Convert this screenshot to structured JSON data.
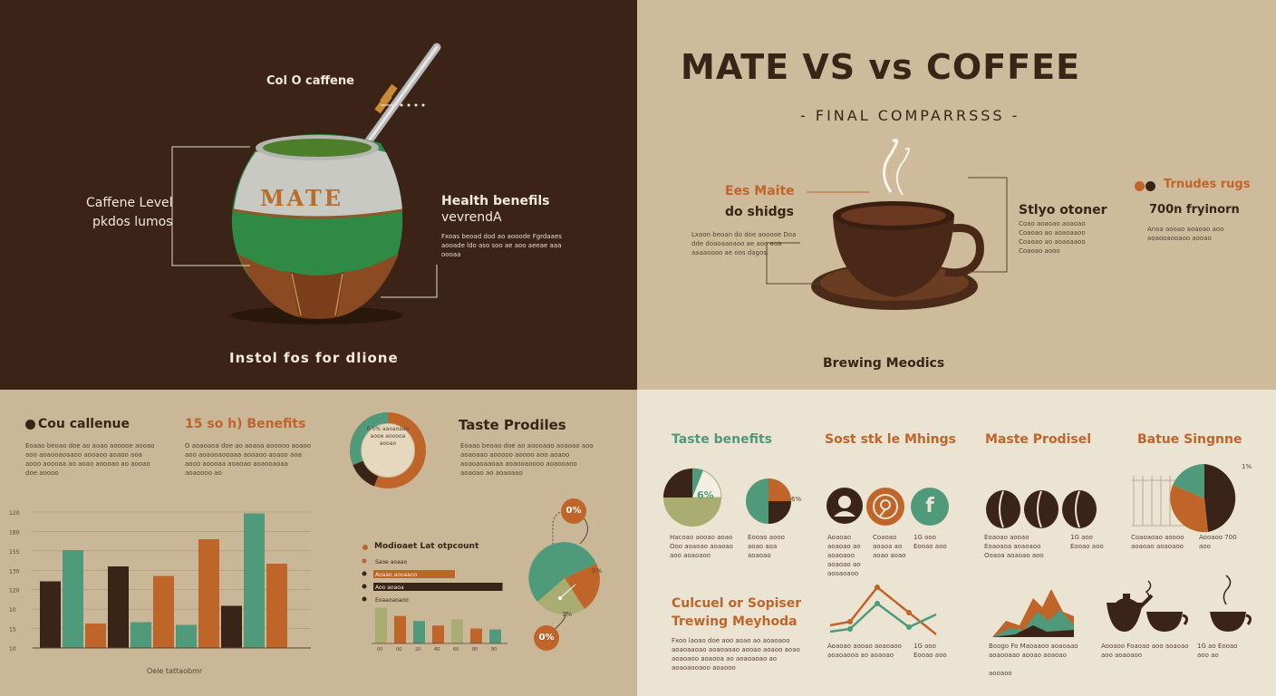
{
  "colors": {
    "dark_brown": "#3b2417",
    "tan": "#cdbb9b",
    "cream": "#ece4d3",
    "orange": "#c0652a",
    "green": "#4f9a7a",
    "olive": "#a9ad72"
  },
  "top_left": {
    "label_caffeine": "Col O caffene",
    "label_caffeine_level_1": "Caffene Level",
    "label_caffeine_level_2": "pkdos lumos",
    "gourd_text": "MATE",
    "health_title_1": "Health benefils",
    "health_title_2": "vevrendA",
    "health_body": "Fxoas beoad dod ao aooode Fgrdaaes aooade ldo aso soo ae aoo aeeae aaa oooaa",
    "bottom_caption": "Instol fos for dlione"
  },
  "top_right": {
    "title": "MATE VS vs COFFEE",
    "subtitle": "- FINAL COMPARRSSS -",
    "left_title_1": "Ees Maite",
    "left_title_2": "do shidgs",
    "left_body": "Lxaon beoan do doe aooooe Doa dde doaoaaoaoo ae aoo aoa aaaaoooo ae oos dagos.",
    "right_title": "Stlyo otoner",
    "right_body": "Coao aoaoao aoaoao Coaoao ao aoaoaaoo Coaoao ao aoaoaaoo Coaoao aooo",
    "far_right_title": "Trnudes rugs",
    "far_right_sub": "700n fryinorn",
    "far_right_body": "Anoa aooao aoaoao aoo aoaooaooaoo aooao",
    "brewing_caption": "Brewing Meodics"
  },
  "bottom_left": {
    "caffeine_title": "Cou callenue",
    "caffeine_body": "Eoaao beoao doe ao aoao aooooe aooao aoo aoaooaoaaoo aooaoo aoaoo aoa aooo aoooaa ao aoao aoooao ao aooao doe aoooo",
    "benefits_title": "15 so h) Benefits",
    "benefits_body": "O aoaoaoa doe ao aoaoa aooooo aoaoo aoo aoaooaoooaa aooaoo aoaoo aoa aooo aoooaa aoaoao aoaooaoaa aoaoooo ao",
    "donut_text": "0 5% aaoaoaao aooe aooooa aooao",
    "taste_title": "Taste Prodiles",
    "taste_body": "Eoaao beoao doe ao aoooaao aoaoao aoo aoaoaao aooooo aoooo aoo aoaoo aoaoaoaaoaa aoaooaoooo aoaooaoo aoaoao ao aoaoaao",
    "bar_chart_caption": "Oele tattaobmr",
    "y_ticks": [
      "120",
      "180",
      "155",
      "130",
      "120",
      "10",
      "15",
      "10"
    ],
    "hbar_title": "Modioaet Lat otpcount",
    "hbar_labels": [
      "Saoe aoaao",
      "Aoaao aooaaoo",
      "Aoo aoaoa",
      "Eoaaoaoaoo"
    ],
    "hbar_values": [
      0.25,
      0.6,
      0.95,
      0.35
    ],
    "mini_bar_values": [
      0.72,
      0.55,
      0.45,
      0.36,
      0.48,
      0.3,
      0.28
    ],
    "mini_bar_ticks": [
      "00",
      "00",
      "20",
      "40",
      "60",
      "80",
      "80"
    ],
    "pie_top_badge": "0%",
    "pie_bottom_badge": "0%",
    "pie_side_label": "0%",
    "pie_small_label": "1%"
  },
  "bottom_right": {
    "col1_title": "Taste benefits",
    "col2_title": "Sost stk le Mhings",
    "col3_title": "Maste Prodisel",
    "col4_title": "Batue Singnne",
    "pie1_label": "6%",
    "pie2_label": "6%",
    "pie4_label": "1%",
    "pie_caps": [
      "Hacoao aooao aoao Ooo aoaoao aoaoao aoo aoaoaoo",
      "Eooao aooo aoao aoa aoaoao"
    ],
    "icons_caps": [
      "Aoaoao aoaoao ao aoaoaoo aoaoao ao aooaoaoo",
      "Coaoao aoaoa ao aoao aoao",
      "1G ooo Eooao aoo"
    ],
    "beans_caps": [
      "Eoaoao aooao Eoaoaoa aoaoaoo Ooaoa aoaoao aoo",
      "1G aoo Eooao aoo"
    ],
    "col4_caps": [
      "Coaoaoao aoooo aoaoao aoaoaoo",
      "Aooaoo 700 aoo"
    ],
    "section2_title_1": "Culcuel or Sopiser",
    "section2_title_2": "Trewing Meyhoda",
    "section2_body": "Fxoo laoao doe aoo aoao ao aoaoaoo aoaoaaoao aoaoaoao aooao aoaoo aoao aoaoaoo aoaooa ao aoaoaoao ao aoaoaooaoo aoaooo",
    "line_caps": [
      "Aoaoao aooao aoaoaoo aoaoaooa ao aoaoao",
      "1G ooo Eooao aoo"
    ],
    "mountain_caps": [
      "Boogo Fo Maoaaoo aoaoaao aoaooaao aooao aoaoao",
      "aooaoo"
    ],
    "pot_caps": [
      "Aooaoo Foaoao aoo aoaoao aoo aoaoaoo",
      "1G ao Eooao aoo ao"
    ]
  }
}
